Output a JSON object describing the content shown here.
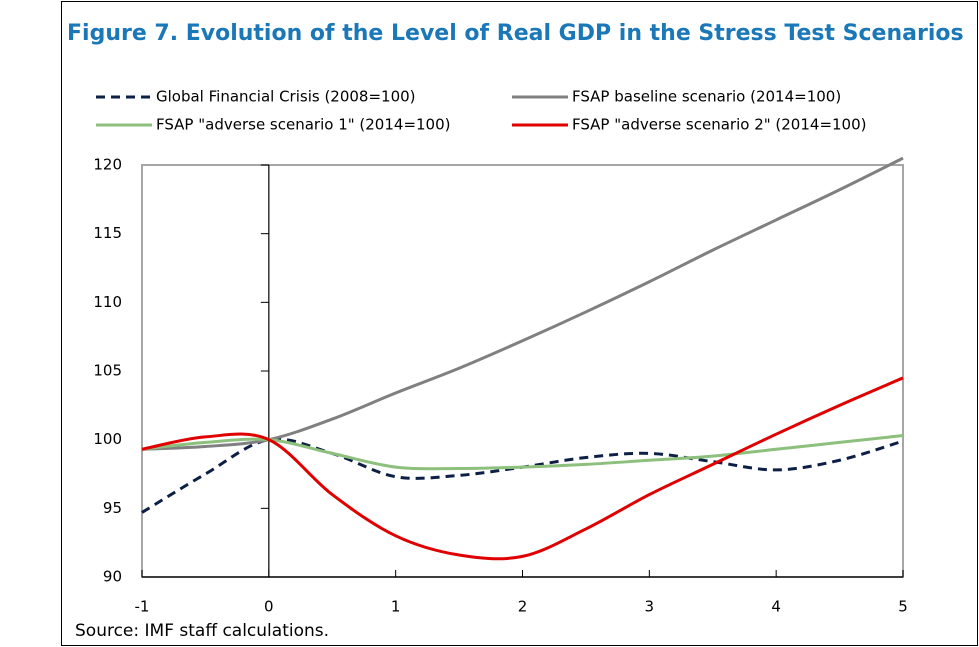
{
  "chart_data": {
    "type": "line",
    "title": "Figure 7. Evolution of the Level of Real GDP in the Stress Test Scenarios",
    "x": [
      -1,
      -0.5,
      0,
      0.5,
      1,
      1.5,
      2,
      2.5,
      3,
      3.5,
      4,
      4.5,
      5
    ],
    "series": [
      {
        "name": "Global Financial Crisis (2008=100)",
        "color": "#0d1f45",
        "style": "dashed",
        "values": [
          94.7,
          97.5,
          100,
          99,
          97.3,
          97.4,
          98,
          98.7,
          99,
          98.4,
          97.8,
          98.5,
          99.9
        ]
      },
      {
        "name": "FSAP baseline scenario (2014=100)",
        "color": "#808080",
        "style": "solid",
        "values": [
          99.3,
          99.5,
          100,
          101.5,
          103.4,
          105.2,
          107.2,
          109.3,
          111.5,
          113.8,
          116,
          118.2,
          120.5
        ]
      },
      {
        "name": "FSAP \"adverse scenario 1\" (2014=100)",
        "color": "#8cc07c",
        "style": "solid",
        "values": [
          99.3,
          99.8,
          100,
          99,
          98,
          97.9,
          98,
          98.2,
          98.5,
          98.8,
          99.3,
          99.8,
          100.3
        ]
      },
      {
        "name": "FSAP \"adverse scenario 2\" (2014=100)",
        "color": "#e00000",
        "style": "solid",
        "values": [
          99.3,
          100.2,
          100,
          96,
          93,
          91.6,
          91.5,
          93.5,
          96,
          98.2,
          100.4,
          102.5,
          104.5
        ]
      }
    ],
    "xlim": [
      -1,
      5
    ],
    "xticks": [
      -1,
      0,
      1,
      2,
      3,
      4,
      5
    ],
    "ylim": [
      90,
      120
    ],
    "yticks": [
      90,
      95,
      100,
      105,
      110,
      115,
      120
    ],
    "note": "Source: IMF staff calculations."
  }
}
